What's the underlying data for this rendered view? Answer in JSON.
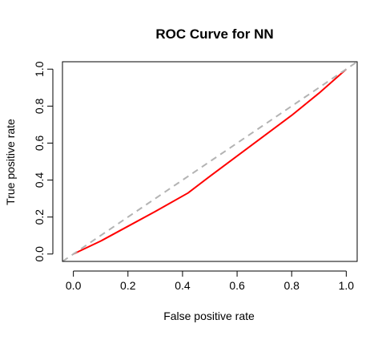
{
  "chart_data": {
    "type": "line",
    "title": "ROC Curve for NN",
    "xlabel": "False positive rate",
    "ylabel": "True positive rate",
    "xlim": [
      -0.04,
      1.04
    ],
    "ylim": [
      -0.04,
      1.04
    ],
    "x_ticks": [
      "0.0",
      "0.2",
      "0.4",
      "0.6",
      "0.8",
      "1.0"
    ],
    "y_ticks": [
      "0.0",
      "0.2",
      "0.4",
      "0.6",
      "0.8",
      "1.0"
    ],
    "grid": false,
    "legend": "none",
    "series": [
      {
        "color": "#ff0000",
        "style": "solid",
        "x": [
          0.0,
          0.1,
          0.2,
          0.3,
          0.42,
          0.5,
          0.6,
          0.7,
          0.8,
          0.9,
          1.0
        ],
        "y": [
          0.0,
          0.07,
          0.15,
          0.23,
          0.33,
          0.42,
          0.53,
          0.64,
          0.75,
          0.87,
          1.0
        ]
      },
      {
        "color": "#b3b3b3",
        "style": "dashed",
        "x": [
          -0.04,
          1.04
        ],
        "y": [
          -0.04,
          1.04
        ]
      }
    ]
  }
}
